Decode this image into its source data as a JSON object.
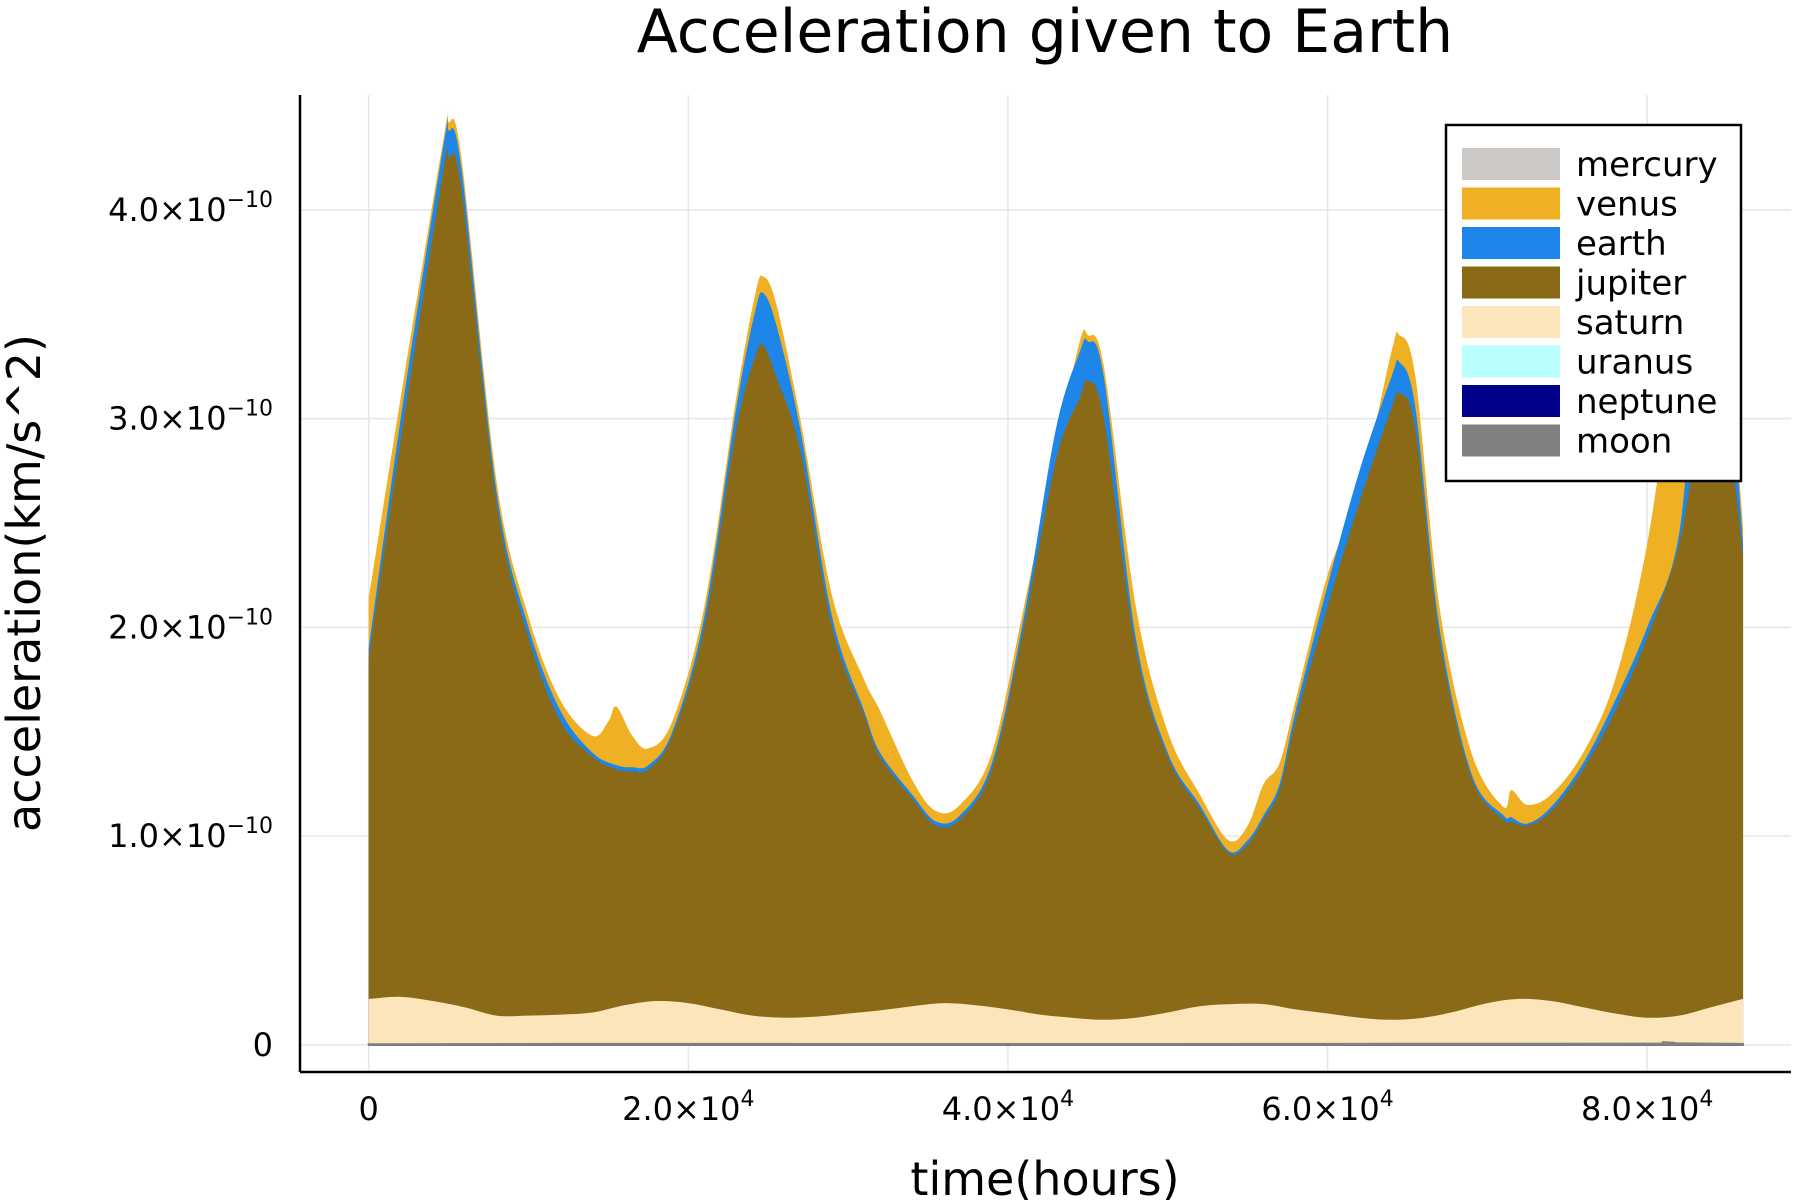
{
  "chart_data": {
    "type": "area",
    "title": "Acceleration given to Earth",
    "xlabel": "time(hours)",
    "ylabel": "acceleration(km/s^2)",
    "xlim": [
      -4300,
      89000
    ],
    "ylim": [
      -1.3e-11,
      4.55e-10
    ],
    "grid": true,
    "legend_position": "top-right",
    "x_ticks": [
      {
        "value": 0,
        "label": "0",
        "exp": ""
      },
      {
        "value": 20000,
        "label": "2.0×10",
        "exp": "4"
      },
      {
        "value": 40000,
        "label": "4.0×10",
        "exp": "4"
      },
      {
        "value": 60000,
        "label": "6.0×10",
        "exp": "4"
      },
      {
        "value": 80000,
        "label": "8.0×10",
        "exp": "4"
      }
    ],
    "y_ticks": [
      {
        "value": 0,
        "label": "0",
        "exp": ""
      },
      {
        "value": 1e-10,
        "label": "1.0×10",
        "exp": "−10"
      },
      {
        "value": 2e-10,
        "label": "2.0×10",
        "exp": "−10"
      },
      {
        "value": 3e-10,
        "label": "3.0×10",
        "exp": "−10"
      },
      {
        "value": 4e-10,
        "label": "4.0×10",
        "exp": "−10"
      }
    ],
    "series": [
      {
        "name": "mercury",
        "color": "#cbc8c6",
        "x": [
          0,
          86000
        ],
        "y": [
          0,
          0
        ]
      },
      {
        "name": "venus",
        "color": "#efb024",
        "x": [
          0,
          2000,
          4700,
          5000,
          5800,
          8000,
          10000,
          12000,
          14000,
          15000,
          15500,
          16500,
          17500,
          19000,
          21000,
          23000,
          24200,
          24700,
          25500,
          27000,
          29000,
          31000,
          32000,
          34000,
          35500,
          37000,
          39000,
          41000,
          43000,
          44500,
          45000,
          46000,
          48000,
          50000,
          52000,
          53800,
          55000,
          56000,
          57000,
          58000,
          60000,
          62000,
          64000,
          64500,
          65500,
          67000,
          69000,
          71000,
          71500,
          72500,
          74000,
          76000,
          78000,
          80000,
          82000,
          83500,
          85000,
          86000
        ],
        "y": [
          2.14e-10,
          3.1e-10,
          4.35e-10,
          4.42e-10,
          4.25e-10,
          2.7e-10,
          2.05e-10,
          1.65e-10,
          1.48e-10,
          1.55e-10,
          1.62e-10,
          1.48e-10,
          1.42e-10,
          1.55e-10,
          2.1e-10,
          3.1e-10,
          3.6e-10,
          3.68e-10,
          3.55e-10,
          3e-10,
          2.15e-10,
          1.75e-10,
          1.6e-10,
          1.27e-10,
          1.12e-10,
          1.15e-10,
          1.4e-10,
          2.1e-10,
          2.85e-10,
          3.37e-10,
          3.4e-10,
          3.25e-10,
          2.1e-10,
          1.5e-10,
          1.2e-10,
          9.8e-11,
          1.05e-10,
          1.25e-10,
          1.35e-10,
          1.65e-10,
          2.25e-10,
          2.65e-10,
          3.32e-10,
          3.4e-10,
          3.2e-10,
          2.1e-10,
          1.4e-10,
          1.14e-10,
          1.22e-10,
          1.15e-10,
          1.2e-10,
          1.4e-10,
          1.75e-10,
          2.4e-10,
          3.4e-10,
          3.8e-10,
          3.4e-10,
          2.48e-10
        ]
      },
      {
        "name": "earth",
        "color": "#1d86e8",
        "x": [
          0,
          2000,
          4700,
          5000,
          5800,
          8000,
          10000,
          12000,
          14000,
          15500,
          16500,
          17500,
          19000,
          21000,
          23000,
          24200,
          24700,
          25500,
          27000,
          29000,
          31000,
          32000,
          34000,
          35500,
          37000,
          39000,
          41000,
          43000,
          44500,
          45000,
          46000,
          48000,
          50000,
          52000,
          53800,
          55000,
          56000,
          57000,
          58000,
          60000,
          62000,
          64000,
          64500,
          65500,
          67000,
          69000,
          71000,
          71500,
          72500,
          74000,
          76000,
          78000,
          80000,
          82000,
          83500,
          85000,
          86000
        ],
        "y": [
          1.9e-10,
          3e-10,
          4.32e-10,
          4.38e-10,
          4.2e-10,
          2.65e-10,
          2e-10,
          1.6e-10,
          1.4e-10,
          1.34e-10,
          1.33e-10,
          1.34e-10,
          1.5e-10,
          2.05e-10,
          3.05e-10,
          3.52e-10,
          3.6e-10,
          3.45e-10,
          2.95e-10,
          2.05e-10,
          1.6e-10,
          1.4e-10,
          1.2e-10,
          1.07e-10,
          1.1e-10,
          1.35e-10,
          2.05e-10,
          2.95e-10,
          3.32e-10,
          3.37e-10,
          3.2e-10,
          1.95e-10,
          1.4e-10,
          1.15e-10,
          9.3e-11,
          9.8e-11,
          1.1e-10,
          1.25e-10,
          1.6e-10,
          2.2e-10,
          2.75e-10,
          3.2e-10,
          3.27e-10,
          3.05e-10,
          2e-10,
          1.3e-10,
          1.1e-10,
          1.09e-10,
          1.06e-10,
          1.14e-10,
          1.35e-10,
          1.65e-10,
          2e-10,
          2.45e-10,
          3.6e-10,
          3.3e-10,
          2.4e-10
        ]
      },
      {
        "name": "jupiter",
        "color": "#8a6917",
        "x": [
          0,
          2000,
          4700,
          5000,
          5800,
          8000,
          10000,
          12000,
          14000,
          15500,
          16500,
          17500,
          19000,
          21000,
          23000,
          24200,
          24700,
          25500,
          27000,
          29000,
          31000,
          32000,
          34000,
          35500,
          37000,
          39000,
          41000,
          43000,
          44500,
          45000,
          46000,
          48000,
          50000,
          52000,
          53800,
          55000,
          56000,
          57000,
          58000,
          60000,
          62000,
          64000,
          64500,
          65500,
          67000,
          69000,
          71000,
          71500,
          72500,
          74000,
          76000,
          78000,
          80000,
          82000,
          83500,
          85000,
          86000
        ],
        "y": [
          1.85e-10,
          2.9e-10,
          4.2e-10,
          4.25e-10,
          4.1e-10,
          2.6e-10,
          1.95e-10,
          1.55e-10,
          1.38e-10,
          1.32e-10,
          1.31e-10,
          1.32e-10,
          1.48e-10,
          2e-10,
          2.95e-10,
          3.3e-10,
          3.35e-10,
          3.2e-10,
          2.85e-10,
          2e-10,
          1.58e-10,
          1.38e-10,
          1.18e-10,
          1.05e-10,
          1.08e-10,
          1.32e-10,
          2e-10,
          2.8e-10,
          3.1e-10,
          3.18e-10,
          3e-10,
          1.9e-10,
          1.38e-10,
          1.13e-10,
          9.2e-11,
          9.6e-11,
          1.08e-10,
          1.22e-10,
          1.55e-10,
          2.1e-10,
          2.6e-10,
          3.05e-10,
          3.12e-10,
          2.95e-10,
          1.95e-10,
          1.28e-10,
          1.08e-10,
          1.07e-10,
          1.05e-10,
          1.12e-10,
          1.32e-10,
          1.6e-10,
          1.95e-10,
          2.4e-10,
          3e-10,
          2.9e-10,
          2.35e-10
        ]
      },
      {
        "name": "saturn",
        "color": "#fde5bb",
        "x": [
          0,
          2000,
          4000,
          6000,
          8000,
          10000,
          12000,
          14000,
          16000,
          18000,
          20000,
          22000,
          24000,
          26000,
          28000,
          30000,
          32000,
          34000,
          36000,
          38000,
          40000,
          42000,
          44000,
          46000,
          48000,
          50000,
          52000,
          54000,
          56000,
          58000,
          60000,
          62000,
          64000,
          66000,
          68000,
          70000,
          72000,
          74000,
          76000,
          78000,
          80000,
          82000,
          84000,
          86000
        ],
        "y": [
          2.2e-11,
          2.3e-11,
          2.1e-11,
          1.8e-11,
          1.4e-11,
          1.4e-11,
          1.45e-11,
          1.55e-11,
          1.9e-11,
          2.1e-11,
          2e-11,
          1.7e-11,
          1.4e-11,
          1.3e-11,
          1.35e-11,
          1.5e-11,
          1.65e-11,
          1.85e-11,
          2e-11,
          1.9e-11,
          1.7e-11,
          1.45e-11,
          1.3e-11,
          1.2e-11,
          1.3e-11,
          1.55e-11,
          1.85e-11,
          1.95e-11,
          1.95e-11,
          1.7e-11,
          1.5e-11,
          1.3e-11,
          1.2e-11,
          1.3e-11,
          1.6e-11,
          2e-11,
          2.2e-11,
          2.1e-11,
          1.8e-11,
          1.5e-11,
          1.3e-11,
          1.4e-11,
          1.8e-11,
          2.2e-11
        ]
      },
      {
        "name": "uranus",
        "color": "#b8fffd",
        "x": [
          0,
          86000
        ],
        "y": [
          0,
          0
        ]
      },
      {
        "name": "neptune",
        "color": "#000088",
        "x": [
          0,
          86000
        ],
        "y": [
          0,
          0
        ]
      },
      {
        "name": "moon",
        "color": "#808080",
        "x": [
          0,
          20000,
          40000,
          60000,
          80000,
          81000,
          82000,
          86000
        ],
        "y": [
          3e-13,
          5e-13,
          4e-13,
          5e-13,
          6e-13,
          1.3e-12,
          7e-13,
          5e-13
        ]
      }
    ]
  }
}
